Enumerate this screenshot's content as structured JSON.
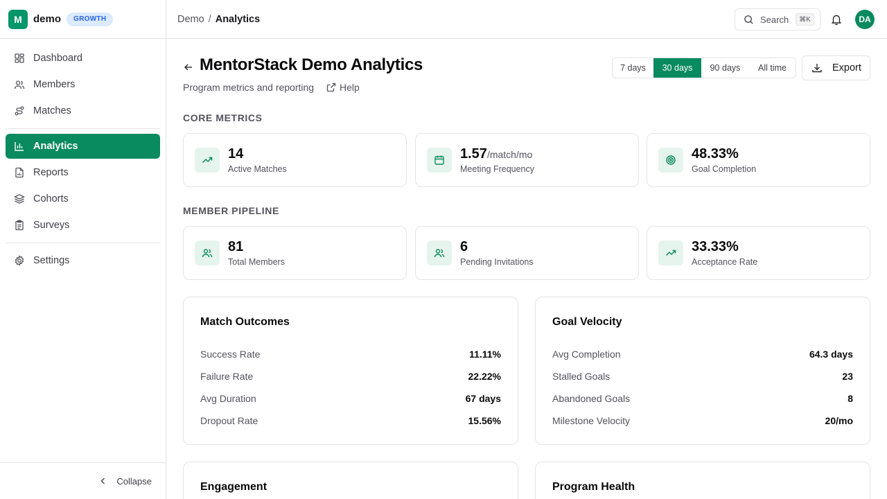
{
  "brand": {
    "logo_letter": "M",
    "name": "demo",
    "plan": "GROWTH"
  },
  "sidebar": {
    "items": [
      {
        "label": "Dashboard",
        "icon": "dashboard-icon"
      },
      {
        "label": "Members",
        "icon": "users-icon"
      },
      {
        "label": "Matches",
        "icon": "route-icon"
      },
      {
        "label": "Analytics",
        "icon": "bar-chart-icon",
        "active": true
      },
      {
        "label": "Reports",
        "icon": "file-chart-icon"
      },
      {
        "label": "Cohorts",
        "icon": "layers-icon"
      },
      {
        "label": "Surveys",
        "icon": "clipboard-icon"
      },
      {
        "label": "Settings",
        "icon": "gear-icon"
      }
    ],
    "collapse_label": "Collapse"
  },
  "header": {
    "breadcrumb": [
      "Demo",
      "Analytics"
    ],
    "breadcrumb_separator": "/",
    "search_label": "Search",
    "search_shortcut": "⌘K",
    "avatar_initials": "DA"
  },
  "page": {
    "title": "MentorStack Demo Analytics",
    "subtitle": "Program metrics and reporting",
    "help_label": "Help",
    "time_ranges": [
      "7 days",
      "30 days",
      "90 days",
      "All time"
    ],
    "selected_range": "30 days",
    "export_label": "Export"
  },
  "core_metrics": {
    "label": "CORE METRICS",
    "cards": [
      {
        "value": "14",
        "unit": "",
        "label": "Active Matches",
        "icon": "trending-up-icon"
      },
      {
        "value": "1.57",
        "unit": "/match/mo",
        "label": "Meeting Frequency",
        "icon": "calendar-icon"
      },
      {
        "value": "48.33%",
        "unit": "",
        "label": "Goal Completion",
        "icon": "target-icon"
      }
    ]
  },
  "member_pipeline": {
    "label": "MEMBER PIPELINE",
    "cards": [
      {
        "value": "81",
        "unit": "",
        "label": "Total Members",
        "icon": "users-icon"
      },
      {
        "value": "6",
        "unit": "",
        "label": "Pending Invitations",
        "icon": "users-icon"
      },
      {
        "value": "33.33%",
        "unit": "",
        "label": "Acceptance Rate",
        "icon": "trending-up-icon"
      }
    ]
  },
  "match_outcomes": {
    "title": "Match Outcomes",
    "rows": [
      {
        "label": "Success Rate",
        "value": "11.11%"
      },
      {
        "label": "Failure Rate",
        "value": "22.22%"
      },
      {
        "label": "Avg Duration",
        "value": "67 days"
      },
      {
        "label": "Dropout Rate",
        "value": "15.56%"
      }
    ]
  },
  "goal_velocity": {
    "title": "Goal Velocity",
    "rows": [
      {
        "label": "Avg Completion",
        "value": "64.3 days"
      },
      {
        "label": "Stalled Goals",
        "value": "23"
      },
      {
        "label": "Abandoned Goals",
        "value": "8"
      },
      {
        "label": "Milestone Velocity",
        "value": "20/mo"
      }
    ]
  },
  "engagement": {
    "title": "Engagement"
  },
  "program_health": {
    "title": "Program Health"
  },
  "colors": {
    "accent": "#0a8a5f",
    "accent_soft": "#e6f4ee",
    "badge_bg": "#dbeafe",
    "badge_text": "#2563eb",
    "border": "#e4e4e7"
  }
}
